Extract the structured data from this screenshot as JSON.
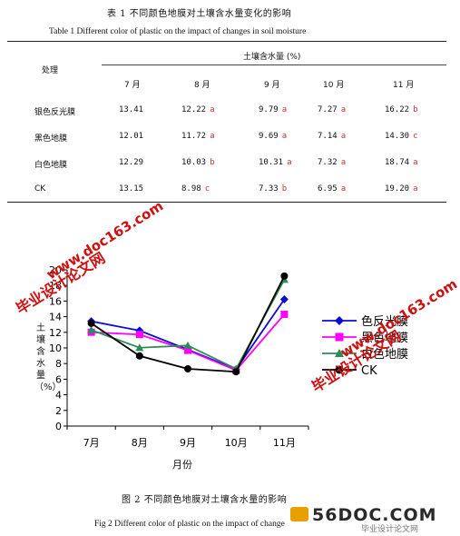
{
  "table": {
    "caption_cn": "表 1  不同颜色地膜对土壤含水量变化的影响",
    "caption_en": "Table 1    Different color of plastic on the impact of changes in soil moisture",
    "row_header": "处理",
    "group_header": "土壤含水量 (%)",
    "months": [
      "7 月",
      "8 月",
      "9 月",
      "10 月",
      "11 月"
    ],
    "rows": [
      {
        "name": "银色反光膜",
        "cells": [
          {
            "v": "13.41",
            "s": ""
          },
          {
            "v": "12.22",
            "s": "a"
          },
          {
            "v": "9.79",
            "s": "a"
          },
          {
            "v": "7.27",
            "s": "a"
          },
          {
            "v": "16.22",
            "s": "b"
          }
        ]
      },
      {
        "name": "黑色地膜",
        "cells": [
          {
            "v": "12.01",
            "s": ""
          },
          {
            "v": "11.72",
            "s": "a"
          },
          {
            "v": "9.69",
            "s": "a"
          },
          {
            "v": "7.14",
            "s": "a"
          },
          {
            "v": "14.30",
            "s": "c"
          }
        ]
      },
      {
        "name": "白色地膜",
        "cells": [
          {
            "v": "12.29",
            "s": ""
          },
          {
            "v": "10.03",
            "s": "b"
          },
          {
            "v": "10.31",
            "s": "a"
          },
          {
            "v": "7.32",
            "s": "a"
          },
          {
            "v": "18.74",
            "s": "a"
          }
        ]
      },
      {
        "name": "CK",
        "cells": [
          {
            "v": "13.15",
            "s": ""
          },
          {
            "v": "8.98",
            "s": "c"
          },
          {
            "v": "7.33",
            "s": "b"
          },
          {
            "v": "6.95",
            "s": "a"
          },
          {
            "v": "19.20",
            "s": "a"
          }
        ]
      }
    ]
  },
  "figure": {
    "caption_cn": "图 2  不同颜色地膜对土壤含水量的影响",
    "caption_en": "Fig 2    Different color of plastic on the impact of change"
  },
  "chart_data": {
    "type": "line",
    "categories": [
      "7月",
      "8月",
      "9月",
      "10月",
      "11月"
    ],
    "xlabel": "月份",
    "ylabel": "土壤含水量（%）",
    "ylim": [
      0,
      20
    ],
    "yticks": [
      0,
      2,
      4,
      6,
      8,
      10,
      12,
      14,
      16,
      18,
      20
    ],
    "legend_position": "right",
    "series": [
      {
        "name": "银色反光膜",
        "legend_label": "色反光膜",
        "color": "#0b0bd4",
        "marker": "diamond",
        "values": [
          13.41,
          12.22,
          9.79,
          7.27,
          16.22
        ]
      },
      {
        "name": "黑色地膜",
        "legend_label": "黑色地膜",
        "color": "#ff00ff",
        "marker": "square",
        "values": [
          12.01,
          11.72,
          9.69,
          7.14,
          14.3
        ]
      },
      {
        "name": "白色地膜",
        "legend_label": "白色地膜",
        "color": "#2e8b57",
        "marker": "triangle",
        "values": [
          12.29,
          10.03,
          10.31,
          7.32,
          18.74
        ]
      },
      {
        "name": "CK",
        "legend_label": "CK",
        "color": "#000000",
        "marker": "circle",
        "values": [
          13.15,
          8.98,
          7.33,
          6.95,
          19.2
        ]
      }
    ]
  },
  "watermarks": {
    "site1": "www.doc163.com",
    "site2": "毕业设计论文网",
    "logo": "56DOC.COM",
    "logo_sub": "毕业设计论文网"
  }
}
